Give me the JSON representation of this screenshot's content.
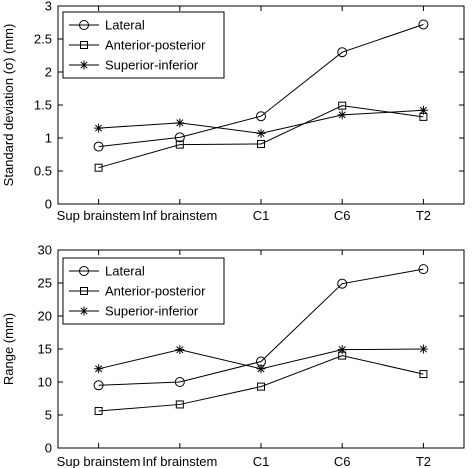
{
  "chart_data": [
    {
      "type": "line",
      "categories": [
        "Sup brainstem",
        "Inf brainstem",
        "C1",
        "C6",
        "T2"
      ],
      "ylabel": "Standard deviation (σ)  (mm)",
      "ylim": [
        0,
        3
      ],
      "yticks": [
        "0",
        "0.5",
        "1",
        "1.5",
        "2",
        "2.5",
        "3"
      ],
      "grid": false,
      "legend": "top-left",
      "series": [
        {
          "name": "Lateral",
          "marker": "circle",
          "values": [
            0.87,
            1.01,
            1.33,
            2.3,
            2.72
          ]
        },
        {
          "name": "Anterior-posterior",
          "marker": "square",
          "values": [
            0.55,
            0.9,
            0.91,
            1.49,
            1.32
          ]
        },
        {
          "name": "Superior-inferior",
          "marker": "star",
          "values": [
            1.15,
            1.23,
            1.07,
            1.35,
            1.42
          ]
        }
      ]
    },
    {
      "type": "line",
      "categories": [
        "Sup brainstem",
        "Inf brainstem",
        "C1",
        "C6",
        "T2"
      ],
      "ylabel": "Range (mm)",
      "ylim": [
        0,
        30
      ],
      "yticks": [
        "0",
        "5",
        "10",
        "15",
        "20",
        "25",
        "30"
      ],
      "grid": false,
      "legend": "top-left",
      "series": [
        {
          "name": "Lateral",
          "marker": "circle",
          "values": [
            9.5,
            10.0,
            13.1,
            24.9,
            27.1
          ]
        },
        {
          "name": "Anterior-posterior",
          "marker": "square",
          "values": [
            5.6,
            6.6,
            9.3,
            14.0,
            11.2
          ]
        },
        {
          "name": "Superior-inferior",
          "marker": "star",
          "values": [
            12.0,
            14.9,
            12.0,
            14.9,
            15.0
          ]
        }
      ]
    }
  ]
}
